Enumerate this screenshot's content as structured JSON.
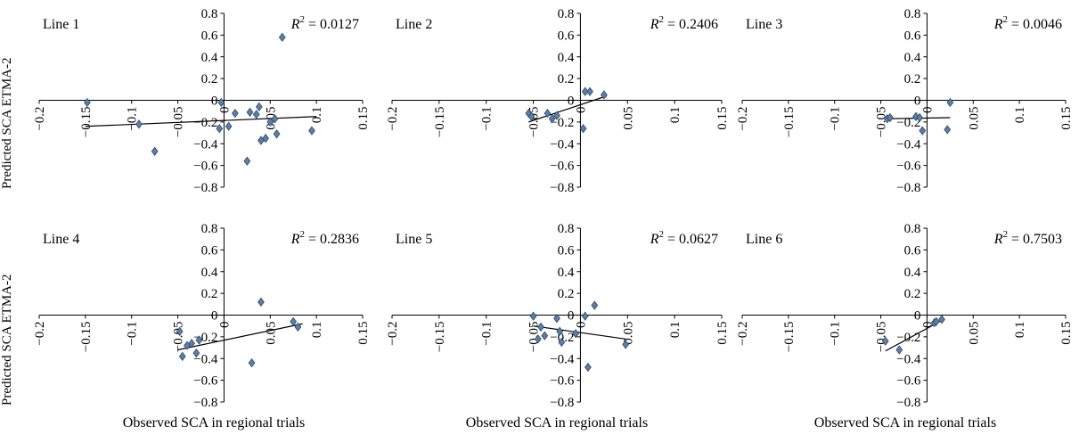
{
  "figure": {
    "y_axis_label": "Predicted SCA ETMA-2",
    "x_axis_label": "Observed SCA in regional trials"
  },
  "colors": {
    "marker_fill": "#5b7fa6",
    "marker_stroke": "#2e4a6b",
    "axis": "#000000",
    "trendline": "#000000"
  },
  "chart_data": [
    {
      "type": "scatter",
      "title": "Line 1",
      "r2_label": "R² = 0.0127",
      "r2_value": "0.0127",
      "xlim": [
        -0.2,
        0.15
      ],
      "ylim": [
        -0.8,
        0.8
      ],
      "xticks": [
        -0.2,
        -0.15,
        -0.1,
        -0.05,
        0,
        0.05,
        0.1,
        0.15
      ],
      "xtick_labels": [
        "−0.2",
        "−0.15",
        "−0.1",
        "−0.05",
        "0",
        "0.05",
        "0.1",
        "0.15"
      ],
      "yticks": [
        0.8,
        0.6,
        0.4,
        0.2,
        0,
        -0.2,
        -0.4,
        -0.6,
        -0.8
      ],
      "ytick_labels": [
        "0.8",
        "0.6",
        "0.4",
        "0.2",
        "0",
        "−0.2",
        "−0.4",
        "−0.6",
        "−0.8"
      ],
      "points": [
        {
          "x": -0.148,
          "y": -0.02
        },
        {
          "x": -0.092,
          "y": -0.22
        },
        {
          "x": -0.075,
          "y": -0.47
        },
        {
          "x": -0.005,
          "y": -0.26
        },
        {
          "x": -0.003,
          "y": -0.02
        },
        {
          "x": 0.005,
          "y": -0.24
        },
        {
          "x": 0.012,
          "y": -0.12
        },
        {
          "x": 0.025,
          "y": -0.56
        },
        {
          "x": 0.028,
          "y": -0.11
        },
        {
          "x": 0.035,
          "y": -0.13
        },
        {
          "x": 0.038,
          "y": -0.06
        },
        {
          "x": 0.04,
          "y": -0.37
        },
        {
          "x": 0.045,
          "y": -0.35
        },
        {
          "x": 0.05,
          "y": -0.2
        },
        {
          "x": 0.055,
          "y": -0.17
        },
        {
          "x": 0.057,
          "y": -0.31
        },
        {
          "x": 0.063,
          "y": 0.58
        },
        {
          "x": 0.095,
          "y": -0.28
        }
      ],
      "trendline": {
        "x": [
          -0.15,
          0.1
        ],
        "y": [
          -0.24,
          -0.15
        ]
      }
    },
    {
      "type": "scatter",
      "title": "Line 2",
      "r2_label": "R² = 0.2406",
      "r2_value": "0.2406",
      "xlim": [
        -0.2,
        0.15
      ],
      "ylim": [
        -0.8,
        0.8
      ],
      "xticks": [
        -0.2,
        -0.15,
        -0.1,
        -0.05,
        0,
        0.05,
        0.1,
        0.15
      ],
      "xtick_labels": [
        "−0.2",
        "−0.15",
        "−0.1",
        "−0.05",
        "0",
        "0.05",
        "0.1",
        "0.15"
      ],
      "yticks": [
        0.8,
        0.6,
        0.4,
        0.2,
        0,
        -0.2,
        -0.4,
        -0.6,
        -0.8
      ],
      "ytick_labels": [
        "0.8",
        "0.6",
        "0.4",
        "0.2",
        "0",
        "−0.2",
        "−0.4",
        "−0.6",
        "−0.8"
      ],
      "points": [
        {
          "x": -0.055,
          "y": -0.12
        },
        {
          "x": -0.052,
          "y": -0.15
        },
        {
          "x": -0.035,
          "y": -0.12
        },
        {
          "x": -0.03,
          "y": -0.17
        },
        {
          "x": -0.025,
          "y": -0.14
        },
        {
          "x": 0.003,
          "y": -0.26
        },
        {
          "x": 0.005,
          "y": 0.08
        },
        {
          "x": 0.01,
          "y": 0.08
        },
        {
          "x": 0.025,
          "y": 0.05
        }
      ],
      "trendline": {
        "x": [
          -0.055,
          0.028
        ],
        "y": [
          -0.2,
          0.04
        ]
      }
    },
    {
      "type": "scatter",
      "title": "Line 3",
      "r2_label": "R² = 0.0046",
      "r2_value": "0.0046",
      "xlim": [
        -0.2,
        0.15
      ],
      "ylim": [
        -0.8,
        0.8
      ],
      "xticks": [
        -0.2,
        -0.15,
        -0.1,
        -0.05,
        0,
        0.05,
        0.1,
        0.15
      ],
      "xtick_labels": [
        "−0.2",
        "−0.15",
        "−0.1",
        "−0.05",
        "0",
        "0.05",
        "0.1",
        "0.15"
      ],
      "yticks": [
        0.8,
        0.6,
        0.4,
        0.2,
        0,
        -0.2,
        -0.4,
        -0.6,
        -0.8
      ],
      "ytick_labels": [
        "0.8",
        "0.6",
        "0.4",
        "0.2",
        "0",
        "−0.2",
        "−0.4",
        "−0.6",
        "−0.8"
      ],
      "points": [
        {
          "x": -0.043,
          "y": -0.17
        },
        {
          "x": -0.04,
          "y": -0.16
        },
        {
          "x": -0.012,
          "y": -0.15
        },
        {
          "x": -0.008,
          "y": -0.16
        },
        {
          "x": -0.005,
          "y": -0.28
        },
        {
          "x": 0.022,
          "y": -0.27
        },
        {
          "x": 0.025,
          "y": -0.02
        }
      ],
      "trendline": {
        "x": [
          -0.045,
          0.025
        ],
        "y": [
          -0.17,
          -0.16
        ]
      }
    },
    {
      "type": "scatter",
      "title": "Line 4",
      "r2_label": "R² = 0.2836",
      "r2_value": "0.2836",
      "xlim": [
        -0.2,
        0.15
      ],
      "ylim": [
        -0.8,
        0.8
      ],
      "xticks": [
        -0.2,
        -0.15,
        -0.1,
        -0.05,
        0,
        0.05,
        0.1,
        0.15
      ],
      "xtick_labels": [
        "−0.2",
        "−0.15",
        "−0.1",
        "−0.05",
        "0",
        "0.05",
        "0.1",
        "0.15"
      ],
      "yticks": [
        0.8,
        0.6,
        0.4,
        0.2,
        0,
        -0.2,
        -0.4,
        -0.6,
        -0.8
      ],
      "ytick_labels": [
        "0.8",
        "0.6",
        "0.4",
        "0.2",
        "0",
        "−0.2",
        "−0.4",
        "−0.6",
        "−0.8"
      ],
      "points": [
        {
          "x": -0.048,
          "y": -0.15
        },
        {
          "x": -0.045,
          "y": -0.38
        },
        {
          "x": -0.04,
          "y": -0.28
        },
        {
          "x": -0.035,
          "y": -0.26
        },
        {
          "x": -0.03,
          "y": -0.35
        },
        {
          "x": -0.027,
          "y": -0.23
        },
        {
          "x": 0.03,
          "y": -0.44
        },
        {
          "x": 0.04,
          "y": 0.12
        },
        {
          "x": 0.075,
          "y": -0.06
        },
        {
          "x": 0.08,
          "y": -0.11
        }
      ],
      "trendline": {
        "x": [
          -0.05,
          0.085
        ],
        "y": [
          -0.32,
          -0.08
        ]
      }
    },
    {
      "type": "scatter",
      "title": "Line 5",
      "r2_label": "R² = 0.0627",
      "r2_value": "0.0627",
      "xlim": [
        -0.2,
        0.15
      ],
      "ylim": [
        -0.8,
        0.8
      ],
      "xticks": [
        -0.2,
        -0.15,
        -0.1,
        -0.05,
        0,
        0.05,
        0.1,
        0.15
      ],
      "xtick_labels": [
        "−0.2",
        "−0.15",
        "−0.1",
        "−0.05",
        "0",
        "0.05",
        "0.1",
        "0.15"
      ],
      "yticks": [
        0.8,
        0.6,
        0.4,
        0.2,
        0,
        -0.2,
        -0.4,
        -0.6,
        -0.8
      ],
      "ytick_labels": [
        "0.8",
        "0.6",
        "0.4",
        "0.2",
        "0",
        "−0.2",
        "−0.4",
        "−0.6",
        "−0.8"
      ],
      "points": [
        {
          "x": -0.05,
          "y": -0.01
        },
        {
          "x": -0.045,
          "y": -0.22
        },
        {
          "x": -0.042,
          "y": -0.11
        },
        {
          "x": -0.038,
          "y": -0.19
        },
        {
          "x": -0.025,
          "y": -0.03
        },
        {
          "x": -0.022,
          "y": -0.15
        },
        {
          "x": -0.02,
          "y": -0.25
        },
        {
          "x": -0.005,
          "y": -0.17
        },
        {
          "x": 0.005,
          "y": -0.01
        },
        {
          "x": 0.008,
          "y": -0.48
        },
        {
          "x": 0.015,
          "y": 0.09
        },
        {
          "x": 0.048,
          "y": -0.27
        }
      ],
      "trendline": {
        "x": [
          -0.05,
          0.048
        ],
        "y": [
          -0.1,
          -0.22
        ]
      }
    },
    {
      "type": "scatter",
      "title": "Line 6",
      "r2_label": "R² = 0.7503",
      "r2_value": "0.7503",
      "xlim": [
        -0.2,
        0.15
      ],
      "ylim": [
        -0.8,
        0.8
      ],
      "xticks": [
        -0.2,
        -0.15,
        -0.1,
        -0.05,
        0,
        0.05,
        0.1,
        0.15
      ],
      "xtick_labels": [
        "−0.2",
        "−0.15",
        "−0.1",
        "−0.05",
        "0",
        "0.05",
        "0.1",
        "0.15"
      ],
      "yticks": [
        0.8,
        0.6,
        0.4,
        0.2,
        0,
        -0.2,
        -0.4,
        -0.6,
        -0.8
      ],
      "ytick_labels": [
        "0.8",
        "0.6",
        "0.4",
        "0.2",
        "0",
        "−0.2",
        "−0.4",
        "−0.6",
        "−0.8"
      ],
      "points": [
        {
          "x": -0.045,
          "y": -0.24
        },
        {
          "x": -0.03,
          "y": -0.32
        },
        {
          "x": 0.008,
          "y": -0.07
        },
        {
          "x": 0.01,
          "y": -0.06
        },
        {
          "x": 0.016,
          "y": -0.04
        }
      ],
      "trendline": {
        "x": [
          -0.045,
          0.018
        ],
        "y": [
          -0.33,
          -0.04
        ]
      }
    }
  ]
}
